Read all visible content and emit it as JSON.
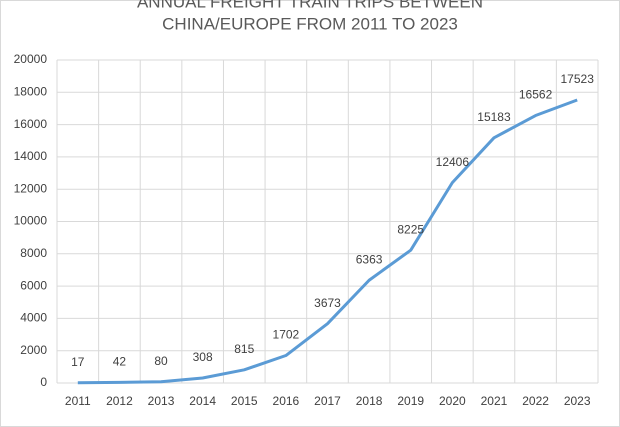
{
  "chart_data": {
    "type": "line",
    "title": [
      "ANNUAL FREIGHT TRAIN TRIPS BETWEEN",
      "CHINA/EUROPE FROM 2011 TO 2023"
    ],
    "categories": [
      "2011",
      "2012",
      "2013",
      "2014",
      "2015",
      "2016",
      "2017",
      "2018",
      "2019",
      "2020",
      "2021",
      "2022",
      "2023"
    ],
    "values": [
      17,
      42,
      80,
      308,
      815,
      1702,
      3673,
      6363,
      8225,
      12406,
      15183,
      16562,
      17523
    ],
    "color": "#5b9bd5",
    "ylim": [
      0,
      20000
    ],
    "yticks": [
      0,
      2000,
      4000,
      6000,
      8000,
      10000,
      12000,
      14000,
      16000,
      18000,
      20000
    ],
    "grid": true
  }
}
